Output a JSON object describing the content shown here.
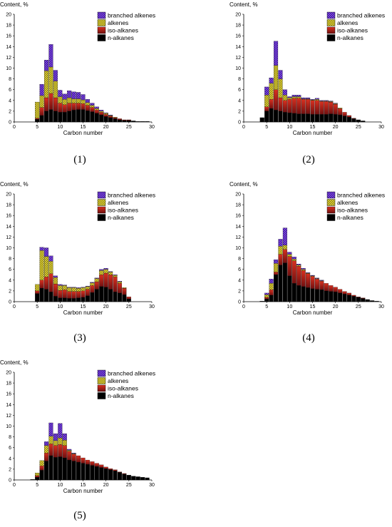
{
  "panel_labels": [
    "(1)",
    "(2)",
    "(3)",
    "(4)",
    "(5)"
  ],
  "colors": {
    "n-alkanes": "#000000",
    "iso-alkanes": "#b02018",
    "alkenes": "#e8e040",
    "branched alkenes": "#8a4af0"
  },
  "chart_data": [
    {
      "type": "bar",
      "stacked": true,
      "panel": "(1)",
      "ylabel": "Content, %",
      "xlabel": "Carbon number",
      "xlim": [
        0,
        30
      ],
      "ylim": [
        0,
        20
      ],
      "xticks": [
        0,
        5,
        10,
        15,
        20,
        25,
        30
      ],
      "yticks": [
        0,
        2,
        4,
        6,
        8,
        10,
        12,
        14,
        16,
        18,
        20
      ],
      "legend": "top-right",
      "x": [
        5,
        6,
        7,
        8,
        9,
        10,
        11,
        12,
        13,
        14,
        15,
        16,
        17,
        18,
        19,
        20,
        21,
        22,
        23,
        24,
        25,
        26,
        27,
        28,
        29
      ],
      "series": [
        {
          "name": "n-alkanes",
          "values": [
            0.5,
            1.2,
            2.0,
            2.3,
            2.0,
            1.8,
            1.8,
            2.0,
            2.2,
            2.3,
            2.3,
            2.1,
            1.9,
            1.6,
            1.3,
            1.0,
            0.8,
            0.6,
            0.4,
            0.3,
            0.3,
            0.2,
            0.1,
            0.1,
            0.1
          ]
        },
        {
          "name": "iso-alkanes",
          "values": [
            0.2,
            1.5,
            2.5,
            3.0,
            2.5,
            1.7,
            1.4,
            1.5,
            1.3,
            1.2,
            1.1,
            1.0,
            0.8,
            0.6,
            0.5,
            0.4,
            0.3,
            0.2,
            0.2,
            0.1,
            0.1,
            0.0,
            0.0,
            0.0,
            0.0
          ]
        },
        {
          "name": "alkenes",
          "values": [
            3.0,
            2.2,
            5.0,
            4.9,
            3.1,
            1.2,
            1.0,
            1.0,
            0.8,
            0.8,
            0.7,
            0.5,
            0.4,
            0.3,
            0.2,
            0.2,
            0.1,
            0.1,
            0.0,
            0.0,
            0.0,
            0.0,
            0.0,
            0.0,
            0.0
          ]
        },
        {
          "name": "branched alkenes",
          "values": [
            0.0,
            2.1,
            2.0,
            4.2,
            2.0,
            1.2,
            1.0,
            1.3,
            1.3,
            1.2,
            1.0,
            0.6,
            0.4,
            0.3,
            0.2,
            0.1,
            0.1,
            0.0,
            0.0,
            0.0,
            0.0,
            0.0,
            0.0,
            0.0,
            0.0
          ]
        }
      ]
    },
    {
      "type": "bar",
      "stacked": true,
      "panel": "(2)",
      "ylabel": "Content, %",
      "xlabel": "Carbon number",
      "xlim": [
        0,
        30
      ],
      "ylim": [
        0,
        20
      ],
      "xticks": [
        0,
        5,
        10,
        15,
        20,
        25,
        30
      ],
      "yticks": [
        0,
        2,
        4,
        6,
        8,
        10,
        12,
        14,
        16,
        18,
        20
      ],
      "legend": "top-right",
      "x": [
        4,
        5,
        6,
        7,
        8,
        9,
        10,
        11,
        12,
        13,
        14,
        15,
        16,
        17,
        18,
        19,
        20,
        21,
        22,
        23,
        24,
        25,
        26
      ],
      "series": [
        {
          "name": "n-alkanes",
          "values": [
            0.8,
            2.0,
            2.5,
            2.2,
            2.0,
            1.8,
            1.7,
            1.6,
            1.5,
            1.5,
            1.5,
            1.4,
            1.4,
            1.4,
            1.4,
            1.5,
            1.4,
            1.3,
            1.1,
            0.9,
            0.6,
            0.4,
            0.2
          ]
        },
        {
          "name": "iso-alkanes",
          "values": [
            0.0,
            0.8,
            1.7,
            3.8,
            2.5,
            2.2,
            2.5,
            2.8,
            2.9,
            2.7,
            2.7,
            2.6,
            2.6,
            2.4,
            2.4,
            2.2,
            1.9,
            1.2,
            0.7,
            0.3,
            0.1,
            0.0,
            0.0
          ]
        },
        {
          "name": "alkenes",
          "values": [
            0.0,
            2.2,
            3.0,
            4.5,
            3.5,
            1.0,
            0.3,
            0.3,
            0.3,
            0.1,
            0.1,
            0.1,
            0.2,
            0.1,
            0.1,
            0.1,
            0.1,
            0.1,
            0.0,
            0.0,
            0.0,
            0.0,
            0.0
          ]
        },
        {
          "name": "branched alkenes",
          "values": [
            0.0,
            1.5,
            1.0,
            4.5,
            1.6,
            1.0,
            0.2,
            0.3,
            0.3,
            0.2,
            0.2,
            0.1,
            0.2,
            0.1,
            0.1,
            0.1,
            0.1,
            0.0,
            0.0,
            0.0,
            0.0,
            0.0,
            0.0
          ]
        }
      ]
    },
    {
      "type": "bar",
      "stacked": true,
      "panel": "(3)",
      "ylabel": "Content, %",
      "xlabel": "Carbon number",
      "xlim": [
        0,
        30
      ],
      "ylim": [
        0,
        20
      ],
      "xticks": [
        0,
        5,
        10,
        15,
        20,
        25,
        30
      ],
      "yticks": [
        0,
        2,
        4,
        6,
        8,
        10,
        12,
        14,
        16,
        18,
        20
      ],
      "legend": "top-right",
      "x": [
        5,
        6,
        7,
        8,
        9,
        10,
        11,
        12,
        13,
        14,
        15,
        16,
        17,
        18,
        19,
        20,
        21,
        22,
        23,
        24,
        25
      ],
      "series": [
        {
          "name": "n-alkanes",
          "values": [
            1.5,
            2.5,
            2.3,
            1.8,
            1.0,
            0.7,
            0.7,
            0.6,
            0.6,
            0.7,
            0.8,
            1.1,
            1.7,
            2.3,
            2.8,
            2.7,
            2.3,
            1.8,
            1.6,
            1.3,
            0.5
          ]
        },
        {
          "name": "iso-alkanes",
          "values": [
            0.5,
            1.5,
            2.3,
            3.4,
            2.3,
            1.4,
            1.5,
            1.3,
            1.3,
            1.2,
            1.2,
            1.2,
            1.3,
            1.4,
            2.2,
            2.6,
            2.7,
            2.8,
            1.8,
            1.2,
            0.4
          ]
        },
        {
          "name": "alkenes",
          "values": [
            1.2,
            5.5,
            3.8,
            2.3,
            1.2,
            0.9,
            0.8,
            0.7,
            0.7,
            0.6,
            0.6,
            0.5,
            0.5,
            0.6,
            0.8,
            0.7,
            0.5,
            0.3,
            0.3,
            0.1,
            0.0
          ]
        },
        {
          "name": "branched alkenes",
          "values": [
            0.0,
            0.6,
            1.6,
            1.0,
            0.3,
            0.2,
            0.1,
            0.1,
            0.1,
            0.1,
            0.1,
            0.1,
            0.1,
            0.1,
            0.2,
            0.2,
            0.1,
            0.1,
            0.1,
            0.0,
            0.0
          ]
        }
      ]
    },
    {
      "type": "bar",
      "stacked": true,
      "panel": "(4)",
      "ylabel": "Content, %",
      "xlabel": "Carbon number",
      "xlim": [
        0,
        30
      ],
      "ylim": [
        0,
        20
      ],
      "xticks": [
        0,
        5,
        10,
        15,
        20,
        25,
        30
      ],
      "yticks": [
        0,
        2,
        4,
        6,
        8,
        10,
        12,
        14,
        16,
        18,
        20
      ],
      "legend": "top-right",
      "x": [
        4,
        5,
        6,
        7,
        8,
        9,
        10,
        11,
        12,
        13,
        14,
        15,
        16,
        17,
        18,
        19,
        20,
        21,
        22,
        23,
        24,
        25,
        26,
        27,
        28,
        29
      ],
      "series": [
        {
          "name": "n-alkanes",
          "values": [
            0.1,
            0.5,
            1.2,
            5.0,
            6.8,
            7.2,
            4.8,
            3.4,
            3.0,
            2.8,
            2.6,
            2.4,
            2.3,
            2.2,
            2.0,
            1.9,
            1.8,
            1.6,
            1.4,
            1.2,
            1.0,
            0.8,
            0.6,
            0.4,
            0.2,
            0.1
          ]
        },
        {
          "name": "iso-alkanes",
          "values": [
            0.0,
            0.3,
            1.0,
            0.5,
            2.0,
            2.5,
            3.6,
            4.2,
            3.6,
            3.0,
            2.6,
            2.3,
            1.9,
            1.6,
            1.4,
            1.1,
            0.9,
            0.7,
            0.5,
            0.4,
            0.2,
            0.1,
            0.1,
            0.0,
            0.0,
            0.0
          ]
        },
        {
          "name": "alkenes",
          "values": [
            0.0,
            0.5,
            1.2,
            1.6,
            1.5,
            0.8,
            0.4,
            0.3,
            0.2,
            0.2,
            0.1,
            0.1,
            0.1,
            0.1,
            0.0,
            0.0,
            0.0,
            0.0,
            0.0,
            0.0,
            0.0,
            0.0,
            0.0,
            0.0,
            0.0,
            0.0
          ]
        },
        {
          "name": "branched alkenes",
          "values": [
            0.0,
            0.3,
            0.8,
            0.7,
            1.3,
            3.2,
            0.4,
            0.4,
            0.2,
            0.2,
            0.1,
            0.1,
            0.1,
            0.1,
            0.0,
            0.0,
            0.0,
            0.0,
            0.0,
            0.0,
            0.0,
            0.0,
            0.0,
            0.0,
            0.0,
            0.0
          ]
        }
      ]
    },
    {
      "type": "bar",
      "stacked": true,
      "panel": "(5)",
      "ylabel": "Content, %",
      "xlabel": "Carbon number",
      "xlim": [
        0,
        30
      ],
      "ylim": [
        0,
        20
      ],
      "xticks": [
        0,
        5,
        10,
        15,
        20,
        25,
        30
      ],
      "yticks": [
        0,
        2,
        4,
        6,
        8,
        10,
        12,
        14,
        16,
        18,
        20
      ],
      "legend": "top-right",
      "x": [
        4,
        5,
        6,
        7,
        8,
        9,
        10,
        11,
        12,
        13,
        14,
        15,
        16,
        17,
        18,
        19,
        20,
        21,
        22,
        23,
        24,
        25,
        26,
        27,
        28,
        29
      ],
      "series": [
        {
          "name": "n-alkanes",
          "values": [
            0.1,
            0.5,
            1.8,
            3.5,
            4.5,
            4.2,
            4.3,
            4.1,
            3.7,
            3.5,
            3.3,
            3.1,
            2.9,
            2.7,
            2.5,
            2.3,
            2.1,
            1.9,
            1.7,
            1.4,
            1.1,
            0.9,
            0.7,
            0.6,
            0.5,
            0.4
          ]
        },
        {
          "name": "iso-alkanes",
          "values": [
            0.0,
            0.3,
            0.8,
            1.5,
            2.2,
            2.2,
            2.3,
            2.3,
            1.6,
            1.3,
            1.2,
            1.0,
            0.8,
            0.7,
            0.6,
            0.5,
            0.3,
            0.2,
            0.2,
            0.1,
            0.1,
            0.0,
            0.0,
            0.0,
            0.0,
            0.0
          ]
        },
        {
          "name": "alkenes",
          "values": [
            0.0,
            0.5,
            1.0,
            1.4,
            1.4,
            0.9,
            1.2,
            1.0,
            0.2,
            0.1,
            0.0,
            0.0,
            0.0,
            0.0,
            0.0,
            0.0,
            0.0,
            0.0,
            0.0,
            0.0,
            0.0,
            0.0,
            0.0,
            0.0,
            0.0,
            0.0
          ]
        },
        {
          "name": "branched alkenes",
          "values": [
            0.0,
            0.0,
            0.0,
            0.7,
            2.5,
            1.3,
            2.7,
            1.2,
            0.2,
            0.1,
            0.0,
            0.0,
            0.0,
            0.0,
            0.0,
            0.0,
            0.0,
            0.0,
            0.0,
            0.0,
            0.0,
            0.0,
            0.0,
            0.0,
            0.0,
            0.0
          ]
        }
      ]
    }
  ]
}
